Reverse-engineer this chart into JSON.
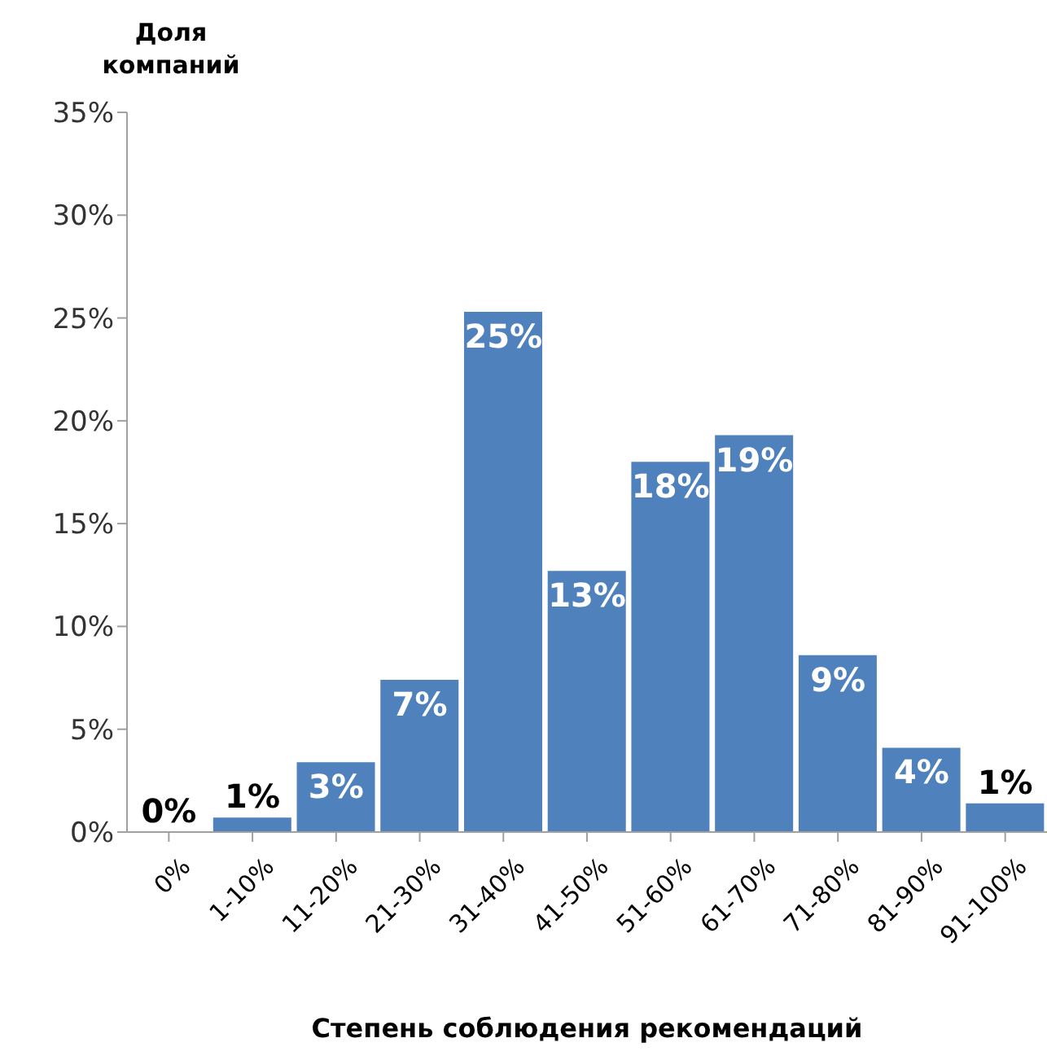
{
  "chart_data": {
    "type": "bar",
    "ylabel": "Доля компаний",
    "xlabel": "Степень соблюдения рекомендаций",
    "categories": [
      "0%",
      "1-10%",
      "11-20%",
      "21-30%",
      "31-40%",
      "41-50%",
      "51-60%",
      "61-70%",
      "71-80%",
      "81-90%",
      "91-100%"
    ],
    "values": [
      0,
      0.7,
      3.4,
      7.4,
      25.3,
      12.7,
      18.0,
      19.3,
      8.6,
      4.1,
      1.4
    ],
    "value_labels": [
      "0%",
      "1%",
      "3%",
      "7%",
      "25%",
      "13%",
      "18%",
      "19%",
      "9%",
      "4%",
      "1%"
    ],
    "color": "#4f81bd",
    "ylim": [
      0,
      35
    ],
    "yticks": [
      {
        "value": 0,
        "label": "0%"
      },
      {
        "value": 5,
        "label": "5%"
      },
      {
        "value": 10,
        "label": "10%"
      },
      {
        "value": 15,
        "label": "15%"
      },
      {
        "value": 20,
        "label": "20%"
      },
      {
        "value": 25,
        "label": "25%"
      },
      {
        "value": 30,
        "label": "30%"
      },
      {
        "value": 35,
        "label": "35%"
      }
    ],
    "grid": false,
    "legend": false
  }
}
